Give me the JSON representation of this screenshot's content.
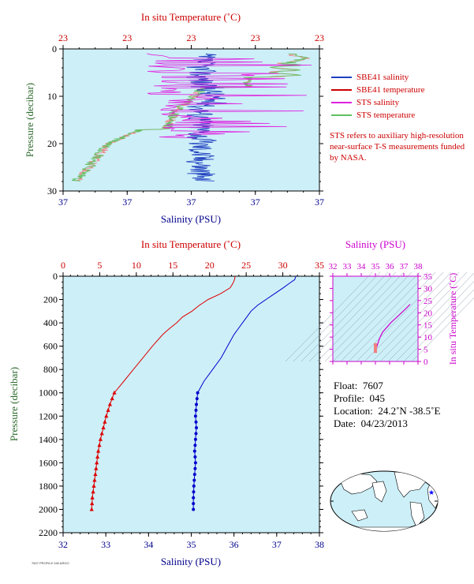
{
  "top_panel": {
    "top_axis_label": "In situ Temperature (˚C)",
    "top_ticks": [
      "23",
      "23",
      "23",
      "23",
      "23"
    ],
    "bottom_axis_label": "Salinity (PSU)",
    "bottom_ticks": [
      "37",
      "37",
      "37",
      "37",
      "37"
    ],
    "left_axis_label": "Pressure (decibar)",
    "left_ticks": [
      "0",
      "10",
      "20",
      "30"
    ]
  },
  "legend": {
    "items": [
      {
        "label": "SBE41 salinity",
        "color": "#2040c0"
      },
      {
        "label": "SBE41 temperature",
        "color": "#cc0000"
      },
      {
        "label": "STS salinity",
        "color": "#e020e0"
      },
      {
        "label": "STS temperature",
        "color": "#60c060"
      }
    ]
  },
  "sts_note": "STS refers to auxiliary high-resolution near-surface T-S measurements funded by NASA.",
  "main_panel": {
    "top_axis_label": "In situ Temperature (˚C)",
    "bottom_axis_label": "Salinity (PSU)",
    "left_axis_label": "Pressure (decibar)"
  },
  "ts_panel": {
    "top_axis_label": "Salinity (PSU)",
    "right_axis_label": "In situ Temperature (˚C)"
  },
  "float_info": {
    "float_label": "Float:",
    "float_value": "7607",
    "profile_label": "Profile:",
    "profile_value": "045",
    "location_label": "Location:",
    "location_value": "24.2˚N  -38.5˚E",
    "date_label": "Date:",
    "date_value": "04/23/2013"
  },
  "credit": "7607 PROFILE 045 ARGO",
  "colors": {
    "plot_bg": "#cdeff8",
    "salinity": "#0000cc",
    "temperature": "#dd0000",
    "ts_axis": "#cc00cc",
    "pressure_axis": "#2d6a2d"
  },
  "chart_data": [
    {
      "type": "line",
      "name": "near-surface profile",
      "ylim": [
        0,
        30
      ],
      "y_ticks": [
        0,
        10,
        20,
        30
      ],
      "series": [
        {
          "name": "SBE41 salinity",
          "pressure": [
            2,
            5,
            8,
            10,
            12,
            14,
            16,
            18,
            20,
            22,
            24,
            26,
            28
          ],
          "value_x_frac": [
            0.55,
            0.54,
            0.56,
            0.55,
            0.52,
            0.54,
            0.55,
            0.5,
            0.52,
            0.55,
            0.56,
            0.52,
            0.55
          ]
        },
        {
          "name": "STS temperature",
          "pressure": [
            0,
            2,
            4,
            6,
            8,
            10,
            12,
            14,
            16,
            18,
            20,
            22,
            24,
            26,
            28
          ],
          "value_x_frac": [
            0.92,
            0.9,
            0.95,
            0.85,
            0.8,
            0.7,
            0.55,
            0.45,
            0.4,
            0.3,
            0.2,
            0.15,
            0.12,
            0.08,
            0.05
          ]
        }
      ]
    },
    {
      "type": "line",
      "name": "full profile",
      "xlabel": "Salinity (PSU)",
      "ylabel": "Pressure (decibar)",
      "x_salinity_range": [
        32,
        38
      ],
      "x_salinity_ticks": [
        32,
        33,
        34,
        35,
        36,
        37,
        38
      ],
      "x_temperature_range": [
        0,
        35
      ],
      "x_temperature_ticks": [
        0,
        5,
        10,
        15,
        20,
        25,
        30,
        35
      ],
      "ylim": [
        0,
        2200
      ],
      "y_ticks": [
        0,
        200,
        400,
        600,
        800,
        1000,
        1200,
        1400,
        1600,
        1800,
        2000,
        2200
      ],
      "series": [
        {
          "name": "temperature",
          "pressure": [
            0,
            30,
            60,
            100,
            150,
            200,
            250,
            300,
            350,
            400,
            450,
            500,
            600,
            700,
            800,
            900,
            1000,
            1100,
            1200,
            1300,
            1400,
            1500,
            1600,
            1700,
            1800,
            1900,
            2000
          ],
          "temperature": [
            23.5,
            23.4,
            23.2,
            22.8,
            21.5,
            19.8,
            18.6,
            17.6,
            16.3,
            15.5,
            14.5,
            13.6,
            12.2,
            10.9,
            9.6,
            8.3,
            7.0,
            6.4,
            5.9,
            5.5,
            5.1,
            4.8,
            4.6,
            4.4,
            4.2,
            4.0,
            3.9
          ]
        },
        {
          "name": "salinity",
          "pressure": [
            0,
            30,
            60,
            100,
            150,
            200,
            250,
            300,
            350,
            400,
            450,
            500,
            600,
            700,
            800,
            900,
            1000,
            1100,
            1200,
            1300,
            1400,
            1500,
            1600,
            1700,
            1800,
            1900,
            2000
          ],
          "salinity": [
            37.45,
            37.42,
            37.3,
            37.15,
            36.95,
            36.75,
            36.55,
            36.4,
            36.3,
            36.2,
            36.1,
            36.0,
            35.85,
            35.7,
            35.5,
            35.3,
            35.15,
            35.12,
            35.1,
            35.12,
            35.1,
            35.08,
            35.1,
            35.08,
            35.06,
            35.05,
            35.05
          ]
        }
      ],
      "markers_from_pressure": 1000
    },
    {
      "type": "scatter",
      "name": "T-S diagram",
      "x_salinity_ticks": [
        32,
        33,
        34,
        35,
        36,
        37,
        38
      ],
      "y_temperature_ticks": [
        0,
        5,
        10,
        15,
        20,
        25,
        30,
        35
      ],
      "x": [
        35.0,
        35.05,
        35.1,
        35.15,
        35.3,
        35.5,
        35.8,
        36.1,
        36.4,
        36.8,
        37.2,
        37.45
      ],
      "y": [
        3.9,
        5.0,
        6.0,
        7.0,
        9.6,
        12.0,
        14.0,
        16.0,
        17.6,
        19.8,
        22.0,
        23.5
      ]
    }
  ]
}
